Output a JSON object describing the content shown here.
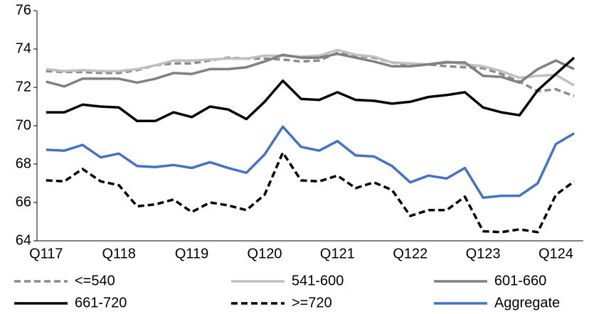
{
  "chart_data": {
    "type": "line",
    "categories": [
      "Q117",
      null,
      null,
      null,
      "Q118",
      null,
      null,
      null,
      "Q119",
      null,
      null,
      null,
      "Q120",
      null,
      null,
      null,
      "Q121",
      null,
      null,
      null,
      "Q122",
      null,
      null,
      null,
      "Q123",
      null,
      null,
      null,
      "Q124",
      null
    ],
    "ylim": [
      64,
      76
    ],
    "yticks": [
      64,
      66,
      68,
      70,
      72,
      74,
      76
    ],
    "grid": false,
    "series": [
      {
        "name": "<=540",
        "color": "#8c8c8c",
        "dashed": true,
        "values": [
          72.85,
          72.8,
          72.8,
          72.75,
          72.75,
          72.9,
          73.15,
          73.25,
          73.25,
          73.4,
          73.55,
          73.5,
          73.5,
          73.45,
          73.35,
          73.4,
          73.8,
          73.65,
          73.55,
          73.3,
          73.15,
          73.2,
          73.1,
          73.05,
          73.0,
          72.7,
          72.3,
          71.8,
          71.9,
          71.55
        ]
      },
      {
        "name": "541-600",
        "color": "#c0c0c0",
        "dashed": false,
        "values": [
          72.95,
          72.85,
          72.9,
          72.85,
          72.85,
          72.95,
          73.15,
          73.4,
          73.4,
          73.45,
          73.5,
          73.5,
          73.65,
          73.65,
          73.6,
          73.65,
          73.95,
          73.7,
          73.6,
          73.3,
          73.25,
          73.2,
          73.35,
          73.2,
          73.1,
          72.85,
          72.5,
          72.6,
          72.65,
          72.1
        ]
      },
      {
        "name": "601-660",
        "color": "#808080",
        "dashed": false,
        "values": [
          72.3,
          72.05,
          72.45,
          72.45,
          72.45,
          72.25,
          72.45,
          72.75,
          72.7,
          72.95,
          72.95,
          73.05,
          73.35,
          73.7,
          73.55,
          73.55,
          73.75,
          73.55,
          73.35,
          73.1,
          73.1,
          73.2,
          73.3,
          73.3,
          72.6,
          72.55,
          72.25,
          72.95,
          73.4,
          72.95
        ]
      },
      {
        "name": "661-720",
        "color": "#000000",
        "dashed": false,
        "values": [
          70.7,
          70.7,
          71.1,
          71.0,
          70.95,
          70.25,
          70.25,
          70.7,
          70.45,
          71.0,
          70.85,
          70.35,
          71.25,
          72.35,
          71.4,
          71.35,
          71.75,
          71.35,
          71.3,
          71.15,
          71.25,
          71.5,
          71.6,
          71.75,
          70.95,
          70.7,
          70.55,
          71.85,
          72.7,
          73.55
        ]
      },
      {
        "name": ">=720",
        "color": "#000000",
        "dashed": true,
        "values": [
          67.15,
          67.1,
          67.75,
          67.1,
          66.9,
          65.8,
          65.9,
          66.15,
          65.5,
          66.0,
          65.85,
          65.6,
          66.4,
          68.6,
          67.15,
          67.1,
          67.4,
          66.75,
          67.05,
          66.65,
          65.3,
          65.6,
          65.6,
          66.3,
          64.5,
          64.45,
          64.6,
          64.45,
          66.4,
          67.1
        ]
      },
      {
        "name": "Aggregate",
        "color": "#4472c4",
        "dashed": false,
        "values": [
          68.75,
          68.7,
          69.0,
          68.35,
          68.55,
          67.9,
          67.85,
          67.95,
          67.8,
          68.1,
          67.8,
          67.55,
          68.5,
          69.95,
          68.9,
          68.7,
          69.2,
          68.45,
          68.4,
          67.9,
          67.05,
          67.4,
          67.25,
          67.8,
          66.25,
          66.35,
          66.35,
          67.0,
          69.05,
          69.6
        ]
      }
    ]
  }
}
